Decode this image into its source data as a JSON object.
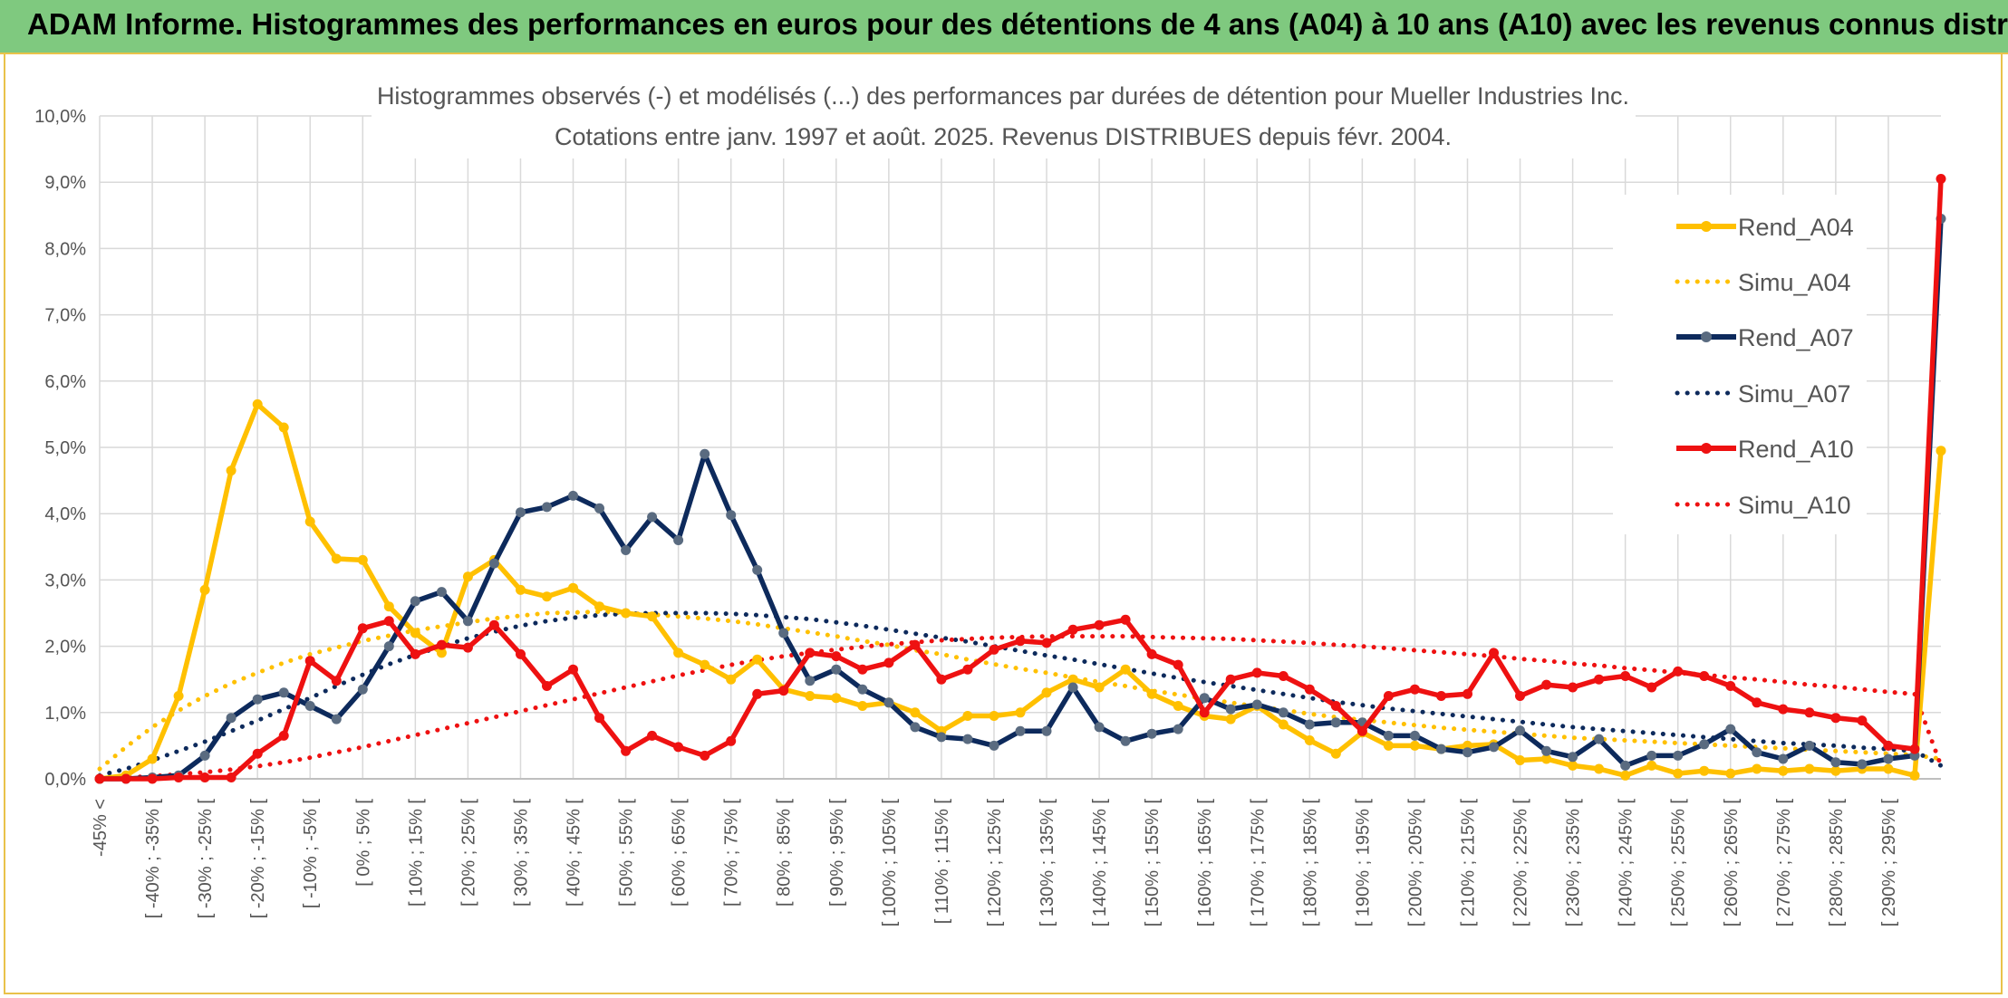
{
  "banner": {
    "title": "ADAM Informe. Histogrammes des performances en euros pour des détentions de 4 ans (A04) à 10 ans (A10) avec les revenus connus distribués"
  },
  "colors": {
    "banner_bg": "#7fc97f",
    "frame_border": "#e9c24a",
    "a04": "#ffc000",
    "a07": "#0d2a5c",
    "a07_marker": "#5a6b80",
    "a10": "#ee1111"
  },
  "chart_data": {
    "type": "line",
    "title": "Histogrammes observés (-) et modélisés (...) des performances par durées de détention pour Mueller Industries Inc.",
    "subtitle": "Cotations entre janv. 1997 et août. 2025. Revenus DISTRIBUES depuis févr. 2004.",
    "ylim": [
      0,
      10
    ],
    "yticks": [
      "0,0%",
      "1,0%",
      "2,0%",
      "3,0%",
      "4,0%",
      "5,0%",
      "6,0%",
      "7,0%",
      "8,0%",
      "9,0%",
      "10,0%"
    ],
    "grid": true,
    "legend_position": "right",
    "xtick_labels": [
      "-45% <",
      "[ -40% ; -35% [",
      "[ -30% ; -25% [",
      "[ -20% ; -15% [",
      "[ -10% ; -5% [",
      "[ 0% ; 5% [",
      "[ 10% ; 15% [",
      "[ 20% ; 25% [",
      "[ 30% ; 35% [",
      "[ 40% ; 45% [",
      "[ 50% ; 55% [",
      "[ 60% ; 65% [",
      "[ 70% ; 75% [",
      "[ 80% ; 85% [",
      "[ 90% ; 95% [",
      "[ 100% ; 105% [",
      "[ 110% ; 115% [",
      "[ 120% ; 125% [",
      "[ 130% ; 135% [",
      "[ 140% ; 145% [",
      "[ 150% ; 155% [",
      "[ 160% ; 165% [",
      "[ 170% ; 175% [",
      "[ 180% ; 185% [",
      "[ 190% ; 195% [",
      "[ 200% ; 205% [",
      "[ 210% ; 215% [",
      "[ 220% ; 225% [",
      "[ 230% ; 235% [",
      "[ 240% ; 245% [",
      "[ 250% ; 255% [",
      "[ 260% ; 265% [",
      "[ 270% ; 275% [",
      "[ 280% ; 285% [",
      "[ 290% ; 295% ["
    ],
    "series": [
      {
        "name": "Rend_A04",
        "style": "solid",
        "color": "#ffc000",
        "values": [
          0.0,
          0.05,
          0.3,
          1.25,
          2.85,
          4.65,
          5.65,
          5.3,
          3.88,
          3.32,
          3.3,
          2.6,
          2.2,
          1.9,
          3.05,
          3.3,
          2.85,
          2.75,
          2.88,
          2.6,
          2.5,
          2.45,
          1.9,
          1.72,
          1.5,
          1.8,
          1.35,
          1.25,
          1.22,
          1.1,
          1.15,
          1.0,
          0.72,
          0.95,
          0.95,
          1.0,
          1.3,
          1.5,
          1.38,
          1.65,
          1.28,
          1.1,
          0.95,
          0.9,
          1.1,
          0.82,
          0.58,
          0.38,
          0.7,
          0.5,
          0.5,
          0.45,
          0.5,
          0.52,
          0.28,
          0.3,
          0.2,
          0.15,
          0.05,
          0.2,
          0.08,
          0.12,
          0.08,
          0.15,
          0.12,
          0.15,
          0.12,
          0.15,
          0.15,
          0.05,
          4.95
        ]
      },
      {
        "name": "Simu_A04",
        "style": "dotted",
        "color": "#ffc000",
        "values": [
          0.15,
          0.48,
          0.78,
          1.03,
          1.25,
          1.44,
          1.6,
          1.75,
          1.88,
          1.98,
          2.08,
          2.16,
          2.24,
          2.3,
          2.36,
          2.42,
          2.46,
          2.5,
          2.51,
          2.52,
          2.5,
          2.48,
          2.45,
          2.42,
          2.38,
          2.33,
          2.27,
          2.21,
          2.15,
          2.08,
          2.02,
          1.94,
          1.88,
          1.8,
          1.73,
          1.66,
          1.6,
          1.53,
          1.46,
          1.4,
          1.33,
          1.27,
          1.21,
          1.15,
          1.09,
          1.04,
          0.98,
          0.93,
          0.89,
          0.85,
          0.81,
          0.77,
          0.74,
          0.71,
          0.68,
          0.65,
          0.62,
          0.6,
          0.58,
          0.56,
          0.54,
          0.52,
          0.5,
          0.48,
          0.46,
          0.44,
          0.42,
          0.4,
          0.38,
          0.36,
          0.3
        ]
      },
      {
        "name": "Rend_A07",
        "style": "solid",
        "color": "#0d2a5c",
        "values": [
          0.0,
          0.0,
          0.02,
          0.05,
          0.35,
          0.92,
          1.2,
          1.3,
          1.1,
          0.9,
          1.35,
          2.0,
          2.68,
          2.82,
          2.38,
          3.25,
          4.02,
          4.1,
          4.27,
          4.08,
          3.45,
          3.95,
          3.6,
          4.9,
          3.98,
          3.15,
          2.2,
          1.48,
          1.65,
          1.35,
          1.15,
          0.78,
          0.63,
          0.6,
          0.5,
          0.72,
          0.72,
          1.38,
          0.78,
          0.57,
          0.68,
          0.75,
          1.22,
          1.05,
          1.12,
          1.0,
          0.82,
          0.85,
          0.85,
          0.65,
          0.65,
          0.45,
          0.4,
          0.48,
          0.73,
          0.42,
          0.33,
          0.6,
          0.2,
          0.35,
          0.35,
          0.52,
          0.75,
          0.4,
          0.3,
          0.5,
          0.25,
          0.22,
          0.3,
          0.35,
          8.45
        ]
      },
      {
        "name": "Simu_A07",
        "style": "dotted",
        "color": "#0d2a5c",
        "values": [
          0.05,
          0.15,
          0.28,
          0.42,
          0.56,
          0.72,
          0.88,
          1.05,
          1.22,
          1.4,
          1.57,
          1.73,
          1.87,
          2.0,
          2.12,
          2.22,
          2.31,
          2.38,
          2.43,
          2.47,
          2.49,
          2.5,
          2.5,
          2.5,
          2.49,
          2.47,
          2.44,
          2.41,
          2.36,
          2.31,
          2.25,
          2.19,
          2.13,
          2.07,
          2.0,
          1.93,
          1.86,
          1.8,
          1.73,
          1.66,
          1.59,
          1.52,
          1.46,
          1.4,
          1.34,
          1.28,
          1.22,
          1.16,
          1.11,
          1.06,
          1.02,
          0.98,
          0.94,
          0.9,
          0.86,
          0.82,
          0.78,
          0.75,
          0.72,
          0.69,
          0.66,
          0.63,
          0.6,
          0.57,
          0.54,
          0.52,
          0.5,
          0.47,
          0.45,
          0.42,
          0.2
        ]
      },
      {
        "name": "Rend_A10",
        "style": "solid",
        "color": "#ee1111",
        "values": [
          0.0,
          0.0,
          0.0,
          0.02,
          0.02,
          0.02,
          0.38,
          0.65,
          1.78,
          1.48,
          2.27,
          2.38,
          1.88,
          2.02,
          1.98,
          2.32,
          1.88,
          1.4,
          1.65,
          0.92,
          0.42,
          0.65,
          0.48,
          0.35,
          0.57,
          1.28,
          1.33,
          1.9,
          1.85,
          1.65,
          1.75,
          2.02,
          1.5,
          1.65,
          1.95,
          2.08,
          2.05,
          2.25,
          2.32,
          2.4,
          1.88,
          1.72,
          1.0,
          1.5,
          1.6,
          1.55,
          1.35,
          1.1,
          0.72,
          1.25,
          1.35,
          1.25,
          1.28,
          1.9,
          1.25,
          1.42,
          1.38,
          1.5,
          1.55,
          1.38,
          1.62,
          1.55,
          1.4,
          1.15,
          1.05,
          1.0,
          0.92,
          0.88,
          0.5,
          0.45,
          9.05
        ]
      },
      {
        "name": "Simu_A10",
        "style": "dotted",
        "color": "#ee1111",
        "values": [
          0.0,
          0.02,
          0.04,
          0.07,
          0.1,
          0.14,
          0.19,
          0.25,
          0.32,
          0.4,
          0.48,
          0.57,
          0.66,
          0.75,
          0.84,
          0.93,
          1.02,
          1.11,
          1.2,
          1.29,
          1.38,
          1.47,
          1.56,
          1.64,
          1.72,
          1.79,
          1.85,
          1.9,
          1.95,
          1.99,
          2.03,
          2.06,
          2.09,
          2.11,
          2.13,
          2.14,
          2.15,
          2.15,
          2.15,
          2.15,
          2.14,
          2.13,
          2.12,
          2.11,
          2.09,
          2.07,
          2.05,
          2.02,
          2.0,
          1.97,
          1.94,
          1.91,
          1.88,
          1.85,
          1.81,
          1.78,
          1.74,
          1.71,
          1.67,
          1.64,
          1.6,
          1.57,
          1.53,
          1.5,
          1.46,
          1.42,
          1.39,
          1.35,
          1.31,
          1.28,
          0.2
        ]
      }
    ]
  }
}
